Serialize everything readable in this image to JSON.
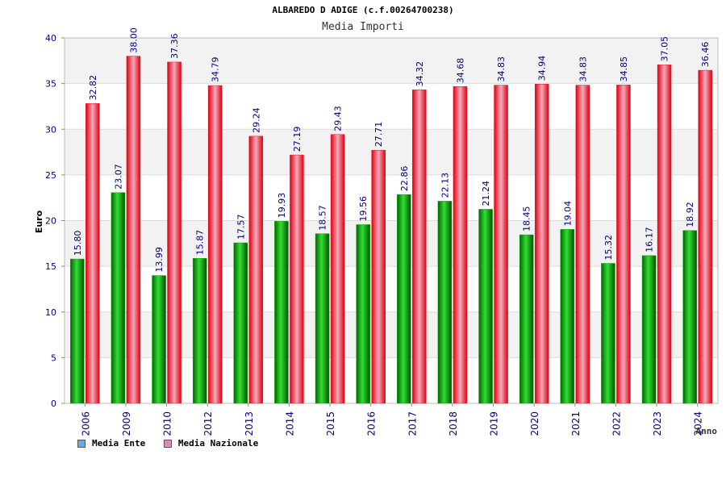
{
  "header": {
    "title": "ALBAREDO D ADIGE (c.f.00264700238)",
    "subtitle": "Media Importi"
  },
  "legend": {
    "ente": {
      "label": "Media Ente",
      "color": "#6fa8dc"
    },
    "nazionale": {
      "label": "Media Nazionale",
      "color": "#e28ab4"
    }
  },
  "colors": {
    "ente_bar": "#00b000",
    "nazionale_bar": "#ee1122",
    "label_text": "#000080"
  },
  "chart_data": {
    "type": "bar",
    "title": "Media Importi",
    "xlabel": "Anno",
    "ylabel": "Euro",
    "ylim": [
      0,
      40
    ],
    "yticks": [
      "0",
      "5",
      "10",
      "15",
      "20",
      "25",
      "30",
      "35",
      "40"
    ],
    "categories": [
      "2006",
      "2009",
      "2010",
      "2012",
      "2013",
      "2014",
      "2015",
      "2016",
      "2017",
      "2018",
      "2019",
      "2020",
      "2021",
      "2022",
      "2023",
      "2024"
    ],
    "series": [
      {
        "name": "Media Ente",
        "values": [
          15.8,
          23.07,
          13.99,
          15.87,
          17.57,
          19.93,
          18.57,
          19.56,
          22.86,
          22.13,
          21.24,
          18.45,
          19.04,
          15.32,
          16.17,
          18.92
        ],
        "labels": [
          "15.80",
          "23.07",
          "13.99",
          "15.87",
          "17.57",
          "19.93",
          "18.57",
          "19.56",
          "22.86",
          "22.13",
          "21.24",
          "18.45",
          "19.04",
          "15.32",
          "16.17",
          "18.92"
        ]
      },
      {
        "name": "Media Nazionale",
        "values": [
          32.82,
          38.0,
          37.36,
          34.79,
          29.24,
          27.19,
          29.43,
          27.71,
          34.32,
          34.68,
          34.83,
          34.94,
          34.83,
          34.85,
          37.05,
          36.46
        ],
        "labels": [
          "32.82",
          "38.00",
          "37.36",
          "34.79",
          "29.24",
          "27.19",
          "29.43",
          "27.71",
          "34.32",
          "34.68",
          "34.83",
          "34.94",
          "34.83",
          "34.85",
          "37.05",
          "36.46"
        ]
      }
    ],
    "grid": true,
    "legend_position": "bottom-left"
  }
}
